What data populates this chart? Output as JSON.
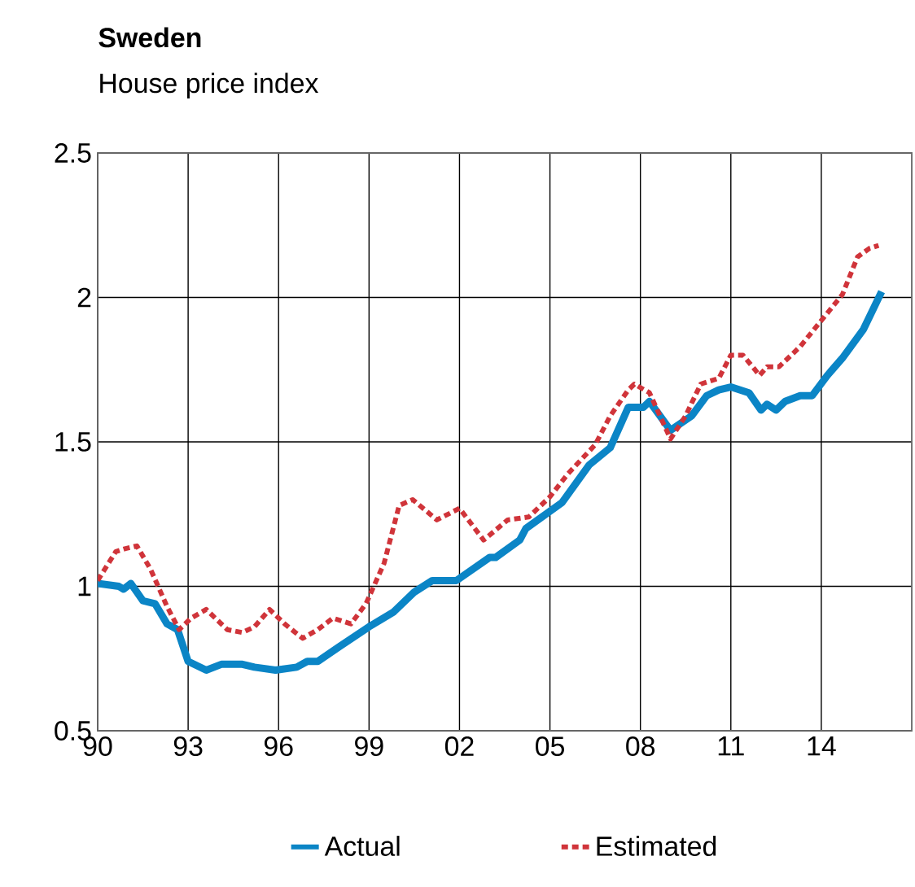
{
  "chart_data": {
    "type": "line",
    "title": "**Sweden**",
    "subtitle": "House price index",
    "xlim": [
      1990,
      2017
    ],
    "ylim": [
      0.5,
      2.5
    ],
    "xticks": [
      {
        "value": 1990,
        "label": "90"
      },
      {
        "value": 1993,
        "label": "93"
      },
      {
        "value": 1996,
        "label": "96"
      },
      {
        "value": 1999,
        "label": "99"
      },
      {
        "value": 2002,
        "label": "02"
      },
      {
        "value": 2005,
        "label": "05"
      },
      {
        "value": 2008,
        "label": "08"
      },
      {
        "value": 2011,
        "label": "11"
      },
      {
        "value": 2014,
        "label": "14"
      }
    ],
    "yticks": [
      0.5,
      1,
      {
        "value": 1.5,
        "label": "1.5"
      },
      2,
      {
        "value": 2.5,
        "label": "2.5"
      }
    ],
    "grid": true,
    "legend": "bottom",
    "marker": "none",
    "series": [
      {
        "name": "Actual",
        "color": "#0b85c6",
        "line_style": "solid",
        "x": [
          1990,
          1990.7,
          1990.86,
          1991.1,
          1991.5,
          1991.9,
          1992.3,
          1992.65,
          1993.0,
          1993.6,
          1994.1,
          1994.8,
          1995.2,
          1995.9,
          1996.6,
          1996.95,
          1997.3,
          1998.0,
          1999.0,
          1999.8,
          2000.5,
          2001.1,
          2001.9,
          2003.0,
          2003.2,
          2004.0,
          2004.2,
          2005.4,
          2006.3,
          2007.0,
          2007.6,
          2008.1,
          2008.3,
          2009.0,
          2009.7,
          2010.2,
          2010.6,
          2011.0,
          2011.6,
          2012.0,
          2012.2,
          2012.5,
          2012.8,
          2013.3,
          2013.7,
          2014.2,
          2014.7,
          2015.4,
          2016.0
        ],
        "values": [
          1.01,
          1.0,
          0.99,
          1.01,
          0.95,
          0.94,
          0.87,
          0.85,
          0.74,
          0.71,
          0.73,
          0.73,
          0.72,
          0.71,
          0.72,
          0.74,
          0.74,
          0.79,
          0.86,
          0.91,
          0.98,
          1.02,
          1.02,
          1.1,
          1.1,
          1.16,
          1.2,
          1.29,
          1.42,
          1.48,
          1.62,
          1.62,
          1.64,
          1.54,
          1.59,
          1.66,
          1.68,
          1.69,
          1.67,
          1.61,
          1.63,
          1.61,
          1.64,
          1.66,
          1.66,
          1.73,
          1.79,
          1.89,
          2.02
        ]
      },
      {
        "name": "Estimated",
        "color": "#d0343a",
        "line_style": "dotted",
        "x": [
          1990,
          1990.6,
          1990.9,
          1991.3,
          1991.75,
          1992.3,
          1992.7,
          1993.1,
          1993.6,
          1994.3,
          1994.8,
          1995.2,
          1995.7,
          1996.2,
          1996.8,
          1997.3,
          1997.8,
          1998.4,
          1998.9,
          1999.5,
          2000.0,
          2000.45,
          2001.25,
          2002.0,
          2002.8,
          2003.6,
          2004.3,
          2005.0,
          2005.6,
          2006.5,
          2007.0,
          2007.6,
          2007.8,
          2008.3,
          2009.0,
          2009.5,
          2010.0,
          2010.6,
          2011.0,
          2011.4,
          2011.8,
          2011.95,
          2012.2,
          2012.6,
          2013.3,
          2014.0,
          2014.7,
          2015.2,
          2015.6,
          2015.9
        ],
        "values": [
          1.02,
          1.12,
          1.13,
          1.14,
          1.06,
          0.93,
          0.85,
          0.89,
          0.92,
          0.85,
          0.84,
          0.86,
          0.92,
          0.87,
          0.82,
          0.85,
          0.89,
          0.87,
          0.94,
          1.08,
          1.28,
          1.3,
          1.23,
          1.27,
          1.16,
          1.23,
          1.24,
          1.31,
          1.39,
          1.49,
          1.59,
          1.68,
          1.7,
          1.67,
          1.51,
          1.59,
          1.7,
          1.72,
          1.8,
          1.8,
          1.75,
          1.73,
          1.76,
          1.76,
          1.83,
          1.92,
          2.01,
          2.14,
          2.17,
          2.18
        ]
      }
    ]
  }
}
